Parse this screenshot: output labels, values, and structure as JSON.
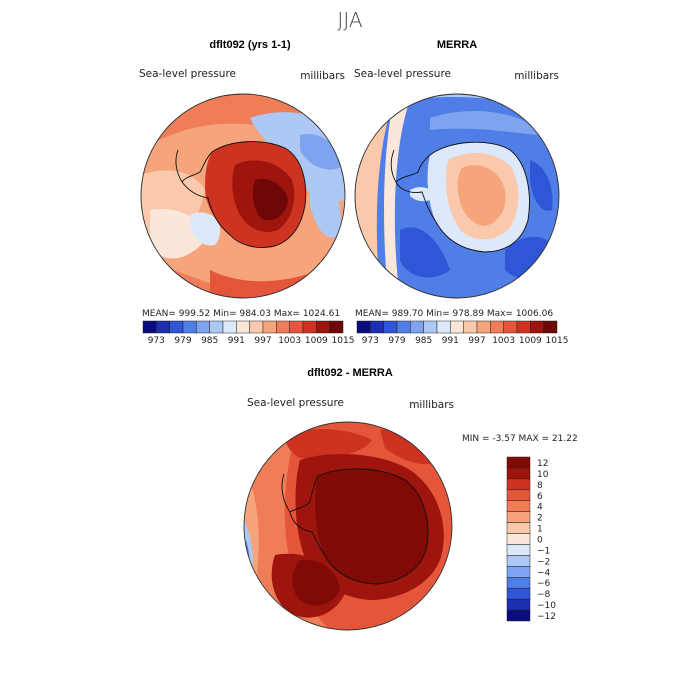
{
  "season_title": "JJA",
  "panels": [
    {
      "title": "dflt092 (yrs 1-1)",
      "variable": "Sea-level pressure",
      "units": "millibars",
      "stats_text": "MEAN= 999.52   Min= 984.03   Max= 1024.61"
    },
    {
      "title": "MERRA",
      "variable": "Sea-level pressure",
      "units": "millibars",
      "stats_text": "MEAN= 989.70   Min= 978.89   Max= 1006.06"
    },
    {
      "title": "dflt092 - MERRA",
      "variable": "Sea-level pressure",
      "units": "millibars",
      "stats_text": "MIN =   -3.57  MAX =   21.22"
    }
  ],
  "colors": {
    "abs_scale": [
      "#0b0b80",
      "#1c2fb0",
      "#2f56d6",
      "#4f7ee6",
      "#7ea3ef",
      "#adc8f5",
      "#dde9fb",
      "#fbe7da",
      "#fac8ab",
      "#f5a47c",
      "#ef7d57",
      "#e5553a",
      "#cc3320",
      "#9e150d",
      "#6e0808"
    ],
    "diff_scale": [
      "#0b0b80",
      "#1c2fb0",
      "#2f56d6",
      "#4f7ee6",
      "#7ea3ef",
      "#adc8f5",
      "#dde9fb",
      "#fbe7da",
      "#fac8ab",
      "#f5a47c",
      "#ef7d57",
      "#e5553a",
      "#cc3320",
      "#9e150d",
      "#7f0a06"
    ],
    "land_line": "#111111"
  },
  "chart_data": [
    {
      "type": "heatmap",
      "title": "dflt092 (yrs 1-1)",
      "subtitle": "Sea-level pressure",
      "units": "millibars",
      "projection": "south polar stereographic",
      "mean": 999.52,
      "min": 984.03,
      "max": 1024.61,
      "colorbar_ticks": [
        "973",
        "979",
        "985",
        "991",
        "997",
        "1003",
        "1009",
        "1015"
      ]
    },
    {
      "type": "heatmap",
      "title": "MERRA",
      "subtitle": "Sea-level pressure",
      "units": "millibars",
      "projection": "south polar stereographic",
      "mean": 989.7,
      "min": 978.89,
      "max": 1006.06,
      "colorbar_ticks": [
        "973",
        "979",
        "985",
        "991",
        "997",
        "1003",
        "1009",
        "1015"
      ]
    },
    {
      "type": "heatmap",
      "title": "dflt092 - MERRA",
      "subtitle": "Sea-level pressure",
      "units": "millibars",
      "projection": "south polar stereographic",
      "min": -3.57,
      "max": 21.22,
      "colorbar_ticks": [
        "12",
        "10",
        "8",
        "6",
        "4",
        "2",
        "1",
        "0",
        "−1",
        "−2",
        "−4",
        "−6",
        "−8",
        "−10",
        "−12"
      ]
    }
  ]
}
